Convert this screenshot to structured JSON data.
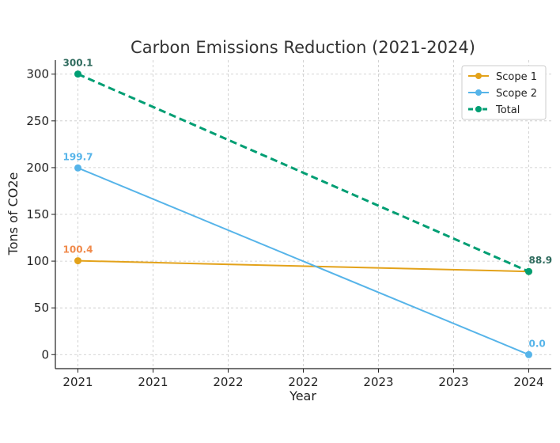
{
  "chart_data": {
    "type": "line",
    "title": "Carbon Emissions Reduction (2021-2024)",
    "xlabel": "Year",
    "ylabel": "Tons of CO2e",
    "x": [
      0,
      1
    ],
    "x_tick_labels": [
      "2021",
      "2021",
      "2022",
      "2022",
      "2023",
      "2023",
      "2024"
    ],
    "x_tick_positions": [
      0,
      0.1667,
      0.3333,
      0.5,
      0.6667,
      0.8333,
      1
    ],
    "xlim": [
      -0.05,
      1.05
    ],
    "ylim": [
      -15,
      315
    ],
    "y_ticks": [
      0,
      50,
      100,
      150,
      200,
      250,
      300
    ],
    "grid": true,
    "legend_position": "top-right",
    "series": [
      {
        "name": "Scope 1",
        "values": [
          100.4,
          88.9
        ],
        "color": "#E3A21A",
        "style": "solid",
        "labels": [
          "100.4",
          ""
        ],
        "label_color": "#F08A4B"
      },
      {
        "name": "Scope 2",
        "values": [
          199.7,
          0.0
        ],
        "color": "#56B4E9",
        "style": "solid",
        "labels": [
          "199.7",
          "0.0"
        ],
        "label_color": "#56B4E9"
      },
      {
        "name": "Total",
        "values": [
          300.1,
          88.9
        ],
        "color": "#009E73",
        "style": "dashed",
        "labels": [
          "300.1",
          "88.9"
        ],
        "label_color": "#2F6B5E"
      }
    ]
  }
}
